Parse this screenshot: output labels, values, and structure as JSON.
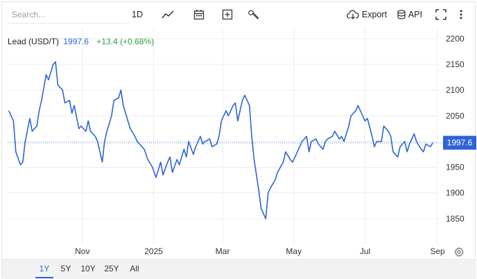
{
  "toolbar": {
    "search_placeholder": "Search...",
    "interval_label": "1D",
    "export_label": "Export",
    "api_label": "API",
    "icons": [
      "line-chart-icon",
      "calendar-icon",
      "add-box-icon",
      "wrench-icon",
      "cloud-download-icon",
      "database-icon",
      "fullscreen-icon",
      "more-vertical-icon",
      "settings-gear-icon"
    ]
  },
  "legend": {
    "name": "Lead (USD/T)",
    "price": "1997.6",
    "change": "+13.4 (+0.68%)"
  },
  "range_buttons": [
    "1Y",
    "5Y",
    "10Y",
    "25Y",
    "All"
  ],
  "active_range": "1Y",
  "colors": {
    "line": "#2f63d6",
    "last_price_tag": "#2f63d6",
    "positive": "#2ea043",
    "grid": "#ececec"
  },
  "chart_data": {
    "type": "line",
    "title": "",
    "xlabel": "",
    "ylabel": "",
    "last_price_label": "1997.6",
    "x_tick_labels": [
      {
        "label": "Nov",
        "date": "2024-11-01"
      },
      {
        "label": "2025",
        "date": "2025-01-01"
      },
      {
        "label": "Mar",
        "date": "2025-03-01"
      },
      {
        "label": "May",
        "date": "2025-05-01"
      },
      {
        "label": "Jul",
        "date": "2025-07-01"
      },
      {
        "label": "Sep",
        "date": "2025-09-01"
      }
    ],
    "y_ticks": [
      1850,
      1900,
      1950,
      2000,
      2050,
      2100,
      2150,
      2200
    ],
    "ylim": [
      1800,
      2220
    ],
    "xlim": [
      "2024-08-29",
      "2025-09-01"
    ],
    "grid": true,
    "series": [
      {
        "x": [
          "2024-08-30",
          "2024-09-03",
          "2024-09-05",
          "2024-09-09",
          "2024-09-11",
          "2024-09-13",
          "2024-09-17",
          "2024-09-19",
          "2024-09-23",
          "2024-09-25",
          "2024-09-27",
          "2024-10-01",
          "2024-10-03",
          "2024-10-07",
          "2024-10-09",
          "2024-10-11",
          "2024-10-15",
          "2024-10-17",
          "2024-10-21",
          "2024-10-23",
          "2024-10-25",
          "2024-10-29",
          "2024-10-31",
          "2024-11-04",
          "2024-11-06",
          "2024-11-08",
          "2024-11-12",
          "2024-11-14",
          "2024-11-18",
          "2024-11-20",
          "2024-11-22",
          "2024-11-26",
          "2024-11-28",
          "2024-12-02",
          "2024-12-04",
          "2024-12-06",
          "2024-12-10",
          "2024-12-12",
          "2024-12-16",
          "2024-12-18",
          "2024-12-20",
          "2024-12-24",
          "2024-12-27",
          "2024-12-31",
          "2025-01-03",
          "2025-01-07",
          "2025-01-09",
          "2025-01-13",
          "2025-01-15",
          "2025-01-17",
          "2025-01-21",
          "2025-01-23",
          "2025-01-27",
          "2025-01-29",
          "2025-01-31",
          "2025-02-04",
          "2025-02-06",
          "2025-02-10",
          "2025-02-12",
          "2025-02-14",
          "2025-02-18",
          "2025-02-20",
          "2025-02-24",
          "2025-02-26",
          "2025-02-28",
          "2025-03-04",
          "2025-03-06",
          "2025-03-10",
          "2025-03-12",
          "2025-03-14",
          "2025-03-18",
          "2025-03-20",
          "2025-03-24",
          "2025-03-26",
          "2025-03-28",
          "2025-04-01",
          "2025-04-03",
          "2025-04-07",
          "2025-04-09",
          "2025-04-11",
          "2025-04-15",
          "2025-04-17",
          "2025-04-22",
          "2025-04-24",
          "2025-04-28",
          "2025-04-30",
          "2025-05-02",
          "2025-05-06",
          "2025-05-08",
          "2025-05-12",
          "2025-05-14",
          "2025-05-16",
          "2025-05-20",
          "2025-05-22",
          "2025-05-26",
          "2025-05-28",
          "2025-05-30",
          "2025-06-03",
          "2025-06-05",
          "2025-06-09",
          "2025-06-11",
          "2025-06-13",
          "2025-06-17",
          "2025-06-19",
          "2025-06-23",
          "2025-06-25",
          "2025-06-27",
          "2025-07-01",
          "2025-07-03",
          "2025-07-07",
          "2025-07-09",
          "2025-07-11",
          "2025-07-15",
          "2025-07-17",
          "2025-07-21",
          "2025-07-23",
          "2025-07-25",
          "2025-07-29",
          "2025-07-31",
          "2025-08-04",
          "2025-08-06",
          "2025-08-08",
          "2025-08-12",
          "2025-08-14",
          "2025-08-18",
          "2025-08-20",
          "2025-08-22",
          "2025-08-26",
          "2025-08-28"
        ],
        "y": [
          2060,
          2040,
          1980,
          1955,
          1960,
          2000,
          2045,
          2020,
          2030,
          2060,
          2080,
          2130,
          2120,
          2150,
          2155,
          2110,
          2100,
          2075,
          2080,
          2055,
          2070,
          2025,
          2030,
          2020,
          2040,
          2020,
          2010,
          2000,
          1960,
          2000,
          2020,
          2050,
          2080,
          2085,
          2100,
          2070,
          2040,
          2025,
          2010,
          2000,
          1995,
          1985,
          1965,
          1950,
          1930,
          1960,
          1935,
          1960,
          1970,
          1940,
          1965,
          1955,
          1985,
          1970,
          2000,
          1975,
          1990,
          2010,
          1995,
          2000,
          2005,
          1990,
          1995,
          2010,
          2040,
          2060,
          2050,
          2070,
          2075,
          2040,
          2080,
          2090,
          2070,
          2010,
          1965,
          1905,
          1870,
          1850,
          1900,
          1910,
          1925,
          1940,
          1960,
          1980,
          1965,
          1960,
          1970,
          1990,
          2000,
          2010,
          1980,
          2000,
          2005,
          1995,
          1985,
          2000,
          2005,
          2010,
          2020,
          2005,
          2010,
          2000,
          2030,
          2050,
          2060,
          2070,
          2060,
          2040,
          2045,
          2010,
          1990,
          2000,
          2000,
          2030,
          2020,
          2010,
          1980,
          1970,
          1990,
          2000,
          1980,
          1995,
          2015,
          2000,
          1985,
          1980,
          1995,
          1990,
          1997.6
        ]
      }
    ]
  }
}
